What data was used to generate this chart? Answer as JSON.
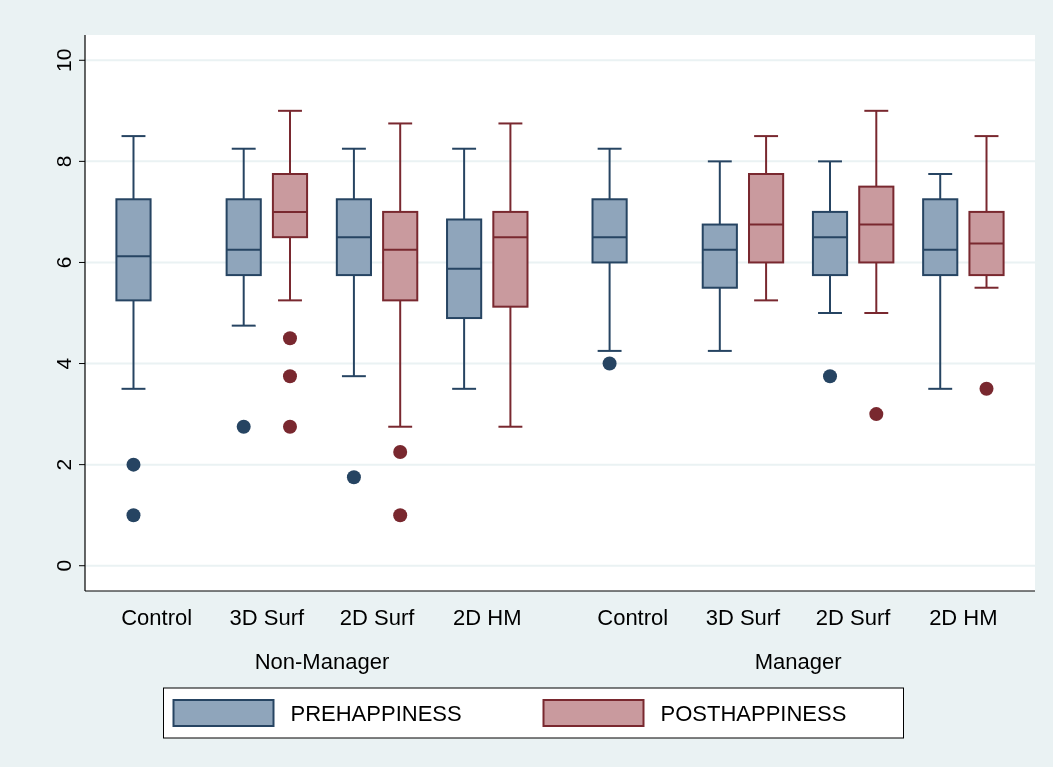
{
  "chart_data": {
    "type": "box",
    "categories": [
      "Control",
      "3D Surf",
      "2D Surf",
      "2D HM",
      "Control",
      "3D Surf",
      "2D Surf",
      "2D HM"
    ],
    "annotations": [
      "Non-Manager",
      "Manager"
    ],
    "ylim": [
      -0.5,
      10.5
    ],
    "yticks": [
      0,
      2,
      4,
      6,
      8,
      10
    ],
    "grid": "y",
    "legend": "bottom",
    "series": [
      {
        "name": "PREHAPPINESS",
        "color": "#8fa5bb",
        "boxes": [
          {
            "low": 3.5,
            "q1": 5.25,
            "median": 6.125,
            "q3": 7.25,
            "high": 8.5,
            "outliers": [
              2,
              1
            ]
          },
          {
            "low": 4.75,
            "q1": 5.75,
            "median": 6.25,
            "q3": 7.25,
            "high": 8.25,
            "outliers": [
              2.75
            ]
          },
          {
            "low": 3.75,
            "q1": 5.75,
            "median": 6.5,
            "q3": 7.25,
            "high": 8.25,
            "outliers": [
              1.75
            ]
          },
          {
            "low": 3.5,
            "q1": 4.9,
            "median": 5.875,
            "q3": 6.85,
            "high": 8.25
          },
          {
            "low": 4.25,
            "q1": 6,
            "median": 6.5,
            "q3": 7.25,
            "high": 8.25,
            "outliers": [
              4
            ]
          },
          {
            "low": 4.25,
            "q1": 5.5,
            "median": 6.25,
            "q3": 6.75,
            "high": 8
          },
          {
            "low": 5,
            "q1": 5.75,
            "median": 6.5,
            "q3": 7,
            "high": 8,
            "outliers": [
              3.75
            ]
          },
          {
            "low": 3.5,
            "q1": 5.75,
            "median": 6.25,
            "q3": 7.25,
            "high": 7.75
          }
        ]
      },
      {
        "name": "POSTHAPPINESS",
        "color": "#c99a9e",
        "boxes": [
          null,
          {
            "low": 5.25,
            "q1": 6.5,
            "median": 7,
            "q3": 7.75,
            "high": 9,
            "outliers": [
              4.5,
              3.75,
              2.75
            ]
          },
          {
            "low": 2.75,
            "q1": 5.25,
            "median": 6.25,
            "q3": 7,
            "high": 8.75,
            "outliers": [
              2.25,
              1
            ]
          },
          {
            "low": 2.75,
            "q1": 5.125,
            "median": 6.5,
            "q3": 7,
            "high": 8.75
          },
          null,
          {
            "low": 5.25,
            "q1": 6,
            "median": 6.75,
            "q3": 7.75,
            "high": 8.5
          },
          {
            "low": 5,
            "q1": 6,
            "median": 6.75,
            "q3": 7.5,
            "high": 9,
            "outliers": [
              3
            ]
          },
          {
            "low": 5.5,
            "q1": 5.75,
            "median": 6.375,
            "q3": 7,
            "high": 8.5,
            "outliers": [
              3.5
            ]
          }
        ]
      }
    ]
  }
}
